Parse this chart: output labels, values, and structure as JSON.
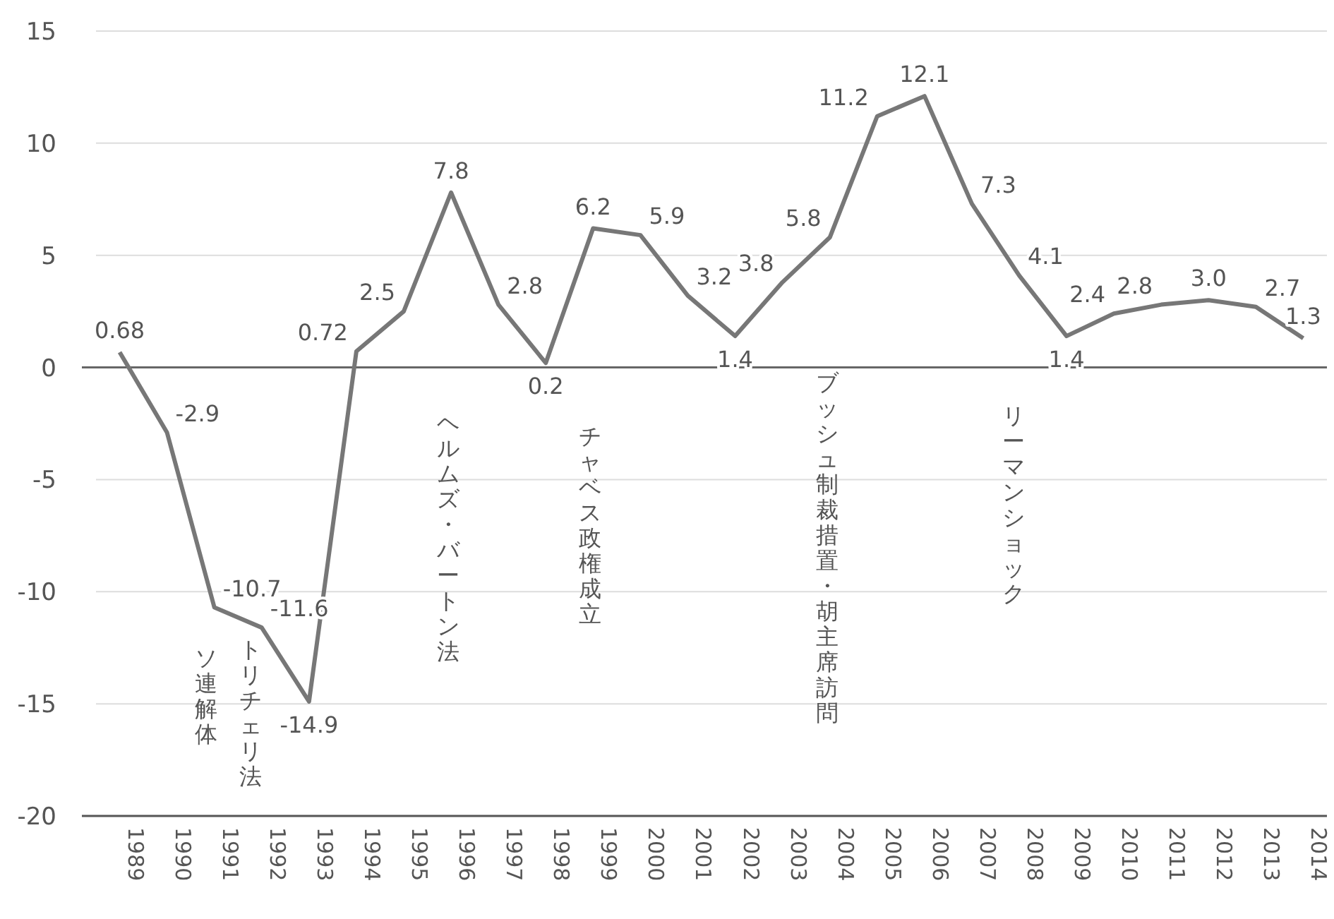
{
  "chart_data": {
    "type": "line",
    "categories": [
      "1989",
      "1990",
      "1991",
      "1992",
      "1993",
      "1994",
      "1995",
      "1996",
      "1997",
      "1998",
      "1999",
      "2000",
      "2001",
      "2002",
      "2003",
      "2004",
      "2005",
      "2006",
      "2007",
      "2008",
      "2009",
      "2010",
      "2011",
      "2012",
      "2013",
      "2014"
    ],
    "series": [
      {
        "color": "#777777",
        "values": [
          0.68,
          -2.9,
          -10.7,
          -11.6,
          -14.9,
          0.72,
          2.5,
          7.8,
          2.8,
          0.2,
          6.2,
          5.9,
          3.2,
          1.4,
          3.8,
          5.8,
          11.2,
          12.1,
          7.3,
          4.1,
          1.4,
          2.4,
          2.8,
          3.0,
          2.7,
          1.3
        ]
      }
    ],
    "value_labels": [
      "0.68",
      "-2.9",
      "-10.7",
      "-11.6",
      "-14.9",
      "0.72",
      "2.5",
      "7.8",
      "2.8",
      "0.2",
      "6.2",
      "5.9",
      "3.2",
      "1.4",
      "3.8",
      "5.8",
      "11.2",
      "12.1",
      "7.3",
      "4.1",
      "1.4",
      "2.4",
      "2.8",
      "3.0",
      "2.7",
      "1.3"
    ],
    "ylim": [
      -20,
      15
    ],
    "yticks": [
      -20,
      -15,
      -10,
      -5,
      0,
      5,
      10,
      15
    ],
    "grid": "y",
    "marker": "none",
    "line_style": "solid",
    "ref_lines": [
      {
        "axis": "y",
        "value": 0,
        "color": "#666666"
      }
    ],
    "annotations": [
      "ソ連解体",
      "トリチェリ法",
      "ヘルムズ・バートン法",
      "チャベス政権成立",
      "ブッシュ制裁措置・胡主席訪問",
      "リーマンショック"
    ]
  }
}
